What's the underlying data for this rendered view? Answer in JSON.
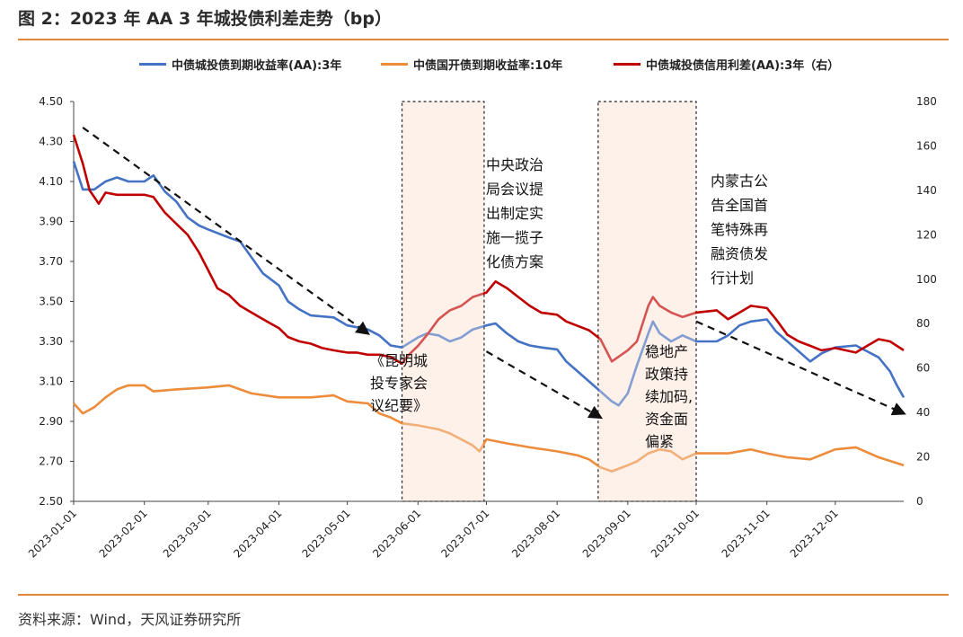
{
  "header": {
    "title": "图 2：2023 年 AA 3 年城投债利差走势（bp）"
  },
  "footer": {
    "source": "资料来源：Wind，天风证券研究所"
  },
  "colors": {
    "blue": "#4472c4",
    "orange": "#ed8c3b",
    "red": "#c00000",
    "accent_rule": "#e2873a",
    "shade": "#fdf1ea"
  },
  "chart_data": {
    "type": "line",
    "x": [
      "2023-01-01",
      "2023-02-01",
      "2023-03-01",
      "2023-04-01",
      "2023-05-01",
      "2023-06-01",
      "2023-07-01",
      "2023-08-01",
      "2023-09-01",
      "2023-10-01",
      "2023-11-01",
      "2023-12-01"
    ],
    "y_left_ticks": [
      "4.50",
      "4.30",
      "4.10",
      "3.90",
      "3.70",
      "3.50",
      "3.30",
      "3.10",
      "2.90",
      "2.70",
      "2.50"
    ],
    "y_right_ticks": [
      "180",
      "160",
      "140",
      "120",
      "100",
      "80",
      "60",
      "40",
      "20",
      "0"
    ],
    "ylim_left": [
      2.5,
      4.5
    ],
    "ylim_right": [
      0,
      180
    ],
    "series": [
      {
        "name": "中债城投债到期收益率(AA):3年",
        "axis": "left",
        "color": "#4472c4",
        "points": [
          [
            "2023-01-01",
            4.2
          ],
          [
            "2023-01-05",
            4.06
          ],
          [
            "2023-01-10",
            4.06
          ],
          [
            "2023-01-15",
            4.1
          ],
          [
            "2023-01-20",
            4.12
          ],
          [
            "2023-01-25",
            4.1
          ],
          [
            "2023-02-01",
            4.1
          ],
          [
            "2023-02-05",
            4.13
          ],
          [
            "2023-02-10",
            4.05
          ],
          [
            "2023-02-15",
            4.0
          ],
          [
            "2023-02-20",
            3.92
          ],
          [
            "2023-02-25",
            3.88
          ],
          [
            "2023-03-01",
            3.86
          ],
          [
            "2023-03-10",
            3.82
          ],
          [
            "2023-03-15",
            3.8
          ],
          [
            "2023-03-20",
            3.72
          ],
          [
            "2023-03-25",
            3.64
          ],
          [
            "2023-04-01",
            3.58
          ],
          [
            "2023-04-05",
            3.5
          ],
          [
            "2023-04-10",
            3.46
          ],
          [
            "2023-04-15",
            3.43
          ],
          [
            "2023-04-25",
            3.42
          ],
          [
            "2023-05-01",
            3.38
          ],
          [
            "2023-05-10",
            3.36
          ],
          [
            "2023-05-15",
            3.33
          ],
          [
            "2023-05-20",
            3.28
          ],
          [
            "2023-05-25",
            3.27
          ],
          [
            "2023-06-01",
            3.32
          ],
          [
            "2023-06-05",
            3.34
          ],
          [
            "2023-06-10",
            3.33
          ],
          [
            "2023-06-15",
            3.3
          ],
          [
            "2023-06-20",
            3.32
          ],
          [
            "2023-06-25",
            3.36
          ],
          [
            "2023-07-01",
            3.38
          ],
          [
            "2023-07-05",
            3.39
          ],
          [
            "2023-07-10",
            3.34
          ],
          [
            "2023-07-15",
            3.3
          ],
          [
            "2023-07-20",
            3.28
          ],
          [
            "2023-07-25",
            3.27
          ],
          [
            "2023-08-01",
            3.26
          ],
          [
            "2023-08-05",
            3.2
          ],
          [
            "2023-08-10",
            3.15
          ],
          [
            "2023-08-15",
            3.1
          ],
          [
            "2023-08-20",
            3.05
          ],
          [
            "2023-08-25",
            3.0
          ],
          [
            "2023-08-28",
            2.98
          ],
          [
            "2023-09-01",
            3.04
          ],
          [
            "2023-09-05",
            3.18
          ],
          [
            "2023-09-10",
            3.34
          ],
          [
            "2023-09-12",
            3.4
          ],
          [
            "2023-09-15",
            3.34
          ],
          [
            "2023-09-20",
            3.3
          ],
          [
            "2023-09-25",
            3.33
          ],
          [
            "2023-10-01",
            3.3
          ],
          [
            "2023-10-10",
            3.3
          ],
          [
            "2023-10-15",
            3.33
          ],
          [
            "2023-10-20",
            3.38
          ],
          [
            "2023-10-25",
            3.4
          ],
          [
            "2023-11-01",
            3.41
          ],
          [
            "2023-11-05",
            3.35
          ],
          [
            "2023-11-10",
            3.3
          ],
          [
            "2023-11-15",
            3.25
          ],
          [
            "2023-11-20",
            3.2
          ],
          [
            "2023-11-25",
            3.24
          ],
          [
            "2023-12-01",
            3.27
          ],
          [
            "2023-12-10",
            3.28
          ],
          [
            "2023-12-15",
            3.25
          ],
          [
            "2023-12-20",
            3.22
          ],
          [
            "2023-12-25",
            3.15
          ],
          [
            "2023-12-28",
            3.08
          ],
          [
            "2023-12-31",
            3.02
          ]
        ]
      },
      {
        "name": "中债国开债到期收益率:10年",
        "axis": "left",
        "color": "#ed8c3b",
        "points": [
          [
            "2023-01-01",
            2.99
          ],
          [
            "2023-01-05",
            2.94
          ],
          [
            "2023-01-10",
            2.97
          ],
          [
            "2023-01-15",
            3.02
          ],
          [
            "2023-01-20",
            3.06
          ],
          [
            "2023-01-25",
            3.08
          ],
          [
            "2023-02-01",
            3.08
          ],
          [
            "2023-02-05",
            3.05
          ],
          [
            "2023-02-15",
            3.06
          ],
          [
            "2023-03-01",
            3.07
          ],
          [
            "2023-03-10",
            3.08
          ],
          [
            "2023-03-15",
            3.06
          ],
          [
            "2023-03-20",
            3.04
          ],
          [
            "2023-04-01",
            3.02
          ],
          [
            "2023-04-15",
            3.02
          ],
          [
            "2023-04-25",
            3.03
          ],
          [
            "2023-05-01",
            3.0
          ],
          [
            "2023-05-10",
            2.99
          ],
          [
            "2023-05-15",
            2.94
          ],
          [
            "2023-05-20",
            2.92
          ],
          [
            "2023-05-25",
            2.89
          ],
          [
            "2023-06-01",
            2.88
          ],
          [
            "2023-06-10",
            2.86
          ],
          [
            "2023-06-15",
            2.84
          ],
          [
            "2023-06-20",
            2.81
          ],
          [
            "2023-06-25",
            2.78
          ],
          [
            "2023-06-28",
            2.75
          ],
          [
            "2023-07-01",
            2.81
          ],
          [
            "2023-07-10",
            2.79
          ],
          [
            "2023-07-20",
            2.77
          ],
          [
            "2023-08-01",
            2.75
          ],
          [
            "2023-08-10",
            2.73
          ],
          [
            "2023-08-15",
            2.71
          ],
          [
            "2023-08-20",
            2.67
          ],
          [
            "2023-08-25",
            2.65
          ],
          [
            "2023-09-01",
            2.68
          ],
          [
            "2023-09-05",
            2.7
          ],
          [
            "2023-09-10",
            2.74
          ],
          [
            "2023-09-15",
            2.76
          ],
          [
            "2023-09-20",
            2.75
          ],
          [
            "2023-09-25",
            2.71
          ],
          [
            "2023-10-01",
            2.74
          ],
          [
            "2023-10-15",
            2.74
          ],
          [
            "2023-10-25",
            2.76
          ],
          [
            "2023-11-01",
            2.74
          ],
          [
            "2023-11-10",
            2.72
          ],
          [
            "2023-11-20",
            2.71
          ],
          [
            "2023-12-01",
            2.76
          ],
          [
            "2023-12-10",
            2.77
          ],
          [
            "2023-12-20",
            2.72
          ],
          [
            "2023-12-31",
            2.68
          ]
        ]
      },
      {
        "name": "中债城投债信用利差(AA):3年（右）",
        "axis": "right",
        "color": "#c00000",
        "points": [
          [
            "2023-01-01",
            165
          ],
          [
            "2023-01-05",
            152
          ],
          [
            "2023-01-08",
            140
          ],
          [
            "2023-01-12",
            134
          ],
          [
            "2023-01-15",
            139
          ],
          [
            "2023-01-20",
            138
          ],
          [
            "2023-02-01",
            138
          ],
          [
            "2023-02-05",
            137
          ],
          [
            "2023-02-10",
            130
          ],
          [
            "2023-02-15",
            125
          ],
          [
            "2023-02-20",
            120
          ],
          [
            "2023-02-25",
            112
          ],
          [
            "2023-03-01",
            104
          ],
          [
            "2023-03-05",
            96
          ],
          [
            "2023-03-10",
            93
          ],
          [
            "2023-03-15",
            88
          ],
          [
            "2023-03-20",
            85
          ],
          [
            "2023-03-25",
            82
          ],
          [
            "2023-04-01",
            78
          ],
          [
            "2023-04-05",
            74
          ],
          [
            "2023-04-10",
            72
          ],
          [
            "2023-04-15",
            71
          ],
          [
            "2023-04-20",
            69
          ],
          [
            "2023-04-25",
            68
          ],
          [
            "2023-05-01",
            67
          ],
          [
            "2023-05-05",
            67
          ],
          [
            "2023-05-10",
            66
          ],
          [
            "2023-05-15",
            66
          ],
          [
            "2023-05-20",
            65
          ],
          [
            "2023-05-25",
            62
          ],
          [
            "2023-05-28",
            66
          ],
          [
            "2023-06-01",
            70
          ],
          [
            "2023-06-05",
            75
          ],
          [
            "2023-06-10",
            82
          ],
          [
            "2023-06-15",
            86
          ],
          [
            "2023-06-20",
            88
          ],
          [
            "2023-06-25",
            92
          ],
          [
            "2023-07-01",
            94
          ],
          [
            "2023-07-05",
            99
          ],
          [
            "2023-07-10",
            96
          ],
          [
            "2023-07-15",
            92
          ],
          [
            "2023-07-20",
            88
          ],
          [
            "2023-07-25",
            85
          ],
          [
            "2023-08-01",
            84
          ],
          [
            "2023-08-05",
            81
          ],
          [
            "2023-08-10",
            79
          ],
          [
            "2023-08-15",
            77
          ],
          [
            "2023-08-20",
            73
          ],
          [
            "2023-08-25",
            63
          ],
          [
            "2023-09-01",
            68
          ],
          [
            "2023-09-05",
            72
          ],
          [
            "2023-09-10",
            88
          ],
          [
            "2023-09-12",
            92
          ],
          [
            "2023-09-15",
            88
          ],
          [
            "2023-09-20",
            85
          ],
          [
            "2023-09-25",
            83
          ],
          [
            "2023-10-01",
            85
          ],
          [
            "2023-10-10",
            86
          ],
          [
            "2023-10-15",
            82
          ],
          [
            "2023-10-20",
            85
          ],
          [
            "2023-10-25",
            88
          ],
          [
            "2023-11-01",
            87
          ],
          [
            "2023-11-05",
            82
          ],
          [
            "2023-11-10",
            75
          ],
          [
            "2023-11-15",
            72
          ],
          [
            "2023-11-20",
            70
          ],
          [
            "2023-11-25",
            68
          ],
          [
            "2023-12-01",
            69
          ],
          [
            "2023-12-10",
            67
          ],
          [
            "2023-12-15",
            70
          ],
          [
            "2023-12-20",
            73
          ],
          [
            "2023-12-25",
            72
          ],
          [
            "2023-12-31",
            68
          ]
        ]
      }
    ],
    "shaded_regions": [
      {
        "start": "2023-05-25",
        "end": "2023-06-30",
        "label": "《昆明城投专家会议纪要》",
        "label_lines": [
          "《昆明城",
          "投专家会",
          "议纪要》"
        ]
      },
      {
        "start": "2023-08-19",
        "end": "2023-10-01",
        "label": "稳地产政策持续加码，资金面偏紧",
        "label_lines": [
          "稳地产",
          "政策持",
          "续加码,",
          "资金面",
          "偏紧"
        ]
      }
    ],
    "annotations": [
      {
        "text": "中央政治局会议提出制定实施一揽子化债方案",
        "lines": [
          "中央政治",
          "局会议提",
          "出制定实",
          "施一揽子",
          "化债方案"
        ]
      },
      {
        "text": "内蒙古公告全国首笔特殊再融资债发行计划",
        "lines": [
          "内蒙古公",
          "告全国首",
          "笔特殊再",
          "融资债发",
          "行计划"
        ]
      }
    ],
    "trend_arrows": [
      {
        "from": [
          "2023-01-05",
          4.37
        ],
        "to": [
          "2023-05-10",
          3.34
        ]
      },
      {
        "from": [
          "2023-07-01",
          3.25
        ],
        "to": [
          "2023-08-20",
          2.92
        ]
      },
      {
        "from": [
          "2023-10-01",
          3.4
        ],
        "to": [
          "2023-12-31",
          2.94
        ]
      }
    ]
  }
}
